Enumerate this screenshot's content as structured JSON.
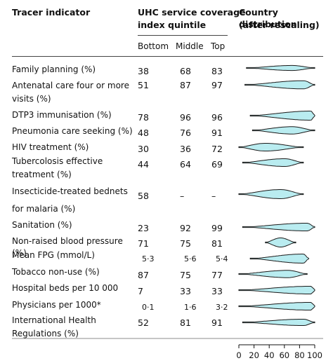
{
  "headers": {
    "indicator": "Tracer indicator",
    "quintile_line1": "UHC service coverage",
    "quintile_line2": "index quintile",
    "distribution_line1": "Country distribution",
    "distribution_line2": "(after rescaling)",
    "bottom": "Bottom",
    "middle": "Middle",
    "top": "Top"
  },
  "colors": {
    "violin_fill": "#b9ecf0",
    "violin_stroke": "#1a1a1a"
  },
  "rows": [
    {
      "line1": "Family planning (%)",
      "line2": "",
      "bottom": "38",
      "middle": "68",
      "top": "83"
    },
    {
      "line1": "Antenatal care four or more",
      "line2": "visits (%)",
      "bottom": "51",
      "middle": "87",
      "top": "97"
    },
    {
      "line1": "DTP3 immunisation (%)",
      "line2": "",
      "bottom": "78",
      "middle": "96",
      "top": "96"
    },
    {
      "line1": "Pneumonia care seeking (%)",
      "line2": "",
      "bottom": "48",
      "middle": "76",
      "top": "91"
    },
    {
      "line1": "HIV treatment (%)",
      "line2": "",
      "bottom": "30",
      "middle": "36",
      "top": "72"
    },
    {
      "line1": "Tubercolosis effective",
      "line2": "treatment (%)",
      "bottom": "44",
      "middle": "64",
      "top": "69"
    },
    {
      "line1": "Insecticide-treated bednets",
      "line2": "for malaria (%)",
      "bottom": "58",
      "middle": "–",
      "top": "–"
    },
    {
      "line1": "Sanitation (%)",
      "line2": "",
      "bottom": "23",
      "middle": "92",
      "top": "99"
    },
    {
      "line1": "Non-raised blood pressure (%)",
      "line2": "",
      "bottom": "71",
      "middle": "75",
      "top": "81"
    },
    {
      "line1": "Mean FPG (mmol/L)",
      "line2": "",
      "bottom": "5·3",
      "middle": "5·6",
      "top": "5·4"
    },
    {
      "line1": "Tobacco non-use (%)",
      "line2": "",
      "bottom": "87",
      "middle": "75",
      "top": "77"
    },
    {
      "line1": "Hospital beds per 10 000",
      "line2": "",
      "bottom": "7",
      "middle": "33",
      "top": "33"
    },
    {
      "line1": "Physicians per 1000*",
      "line2": "",
      "bottom": "0·1",
      "middle": "1·6",
      "top": "3·2"
    },
    {
      "line1": "International Health",
      "line2": "Regulations (%)",
      "bottom": "52",
      "middle": "81",
      "top": "91"
    }
  ],
  "chart_data": {
    "type": "violin",
    "xlim": [
      0,
      100
    ],
    "ticks": [
      "0",
      "20",
      "40",
      "60",
      "80",
      "100"
    ],
    "series": [
      {
        "range": [
          10,
          100
        ],
        "peak": 70,
        "width": 0.55
      },
      {
        "range": [
          8,
          100
        ],
        "peak": 85,
        "width": 0.9
      },
      {
        "range": [
          15,
          100
        ],
        "peak": 95,
        "width": 1.0
      },
      {
        "range": [
          18,
          100
        ],
        "peak": 70,
        "width": 0.8
      },
      {
        "range": [
          0,
          85
        ],
        "peak": 35,
        "width": 0.85
      },
      {
        "range": [
          5,
          85
        ],
        "peak": 60,
        "width": 0.85
      },
      {
        "range": [
          0,
          85
        ],
        "peak": 55,
        "width": 1.0
      },
      {
        "range": [
          5,
          100
        ],
        "peak": 90,
        "width": 0.85
      },
      {
        "range": [
          35,
          75
        ],
        "peak": 55,
        "width": 1.0
      },
      {
        "range": [
          15,
          92
        ],
        "peak": 85,
        "width": 1.0
      },
      {
        "range": [
          0,
          90
        ],
        "peak": 65,
        "width": 0.8
      },
      {
        "range": [
          0,
          100
        ],
        "peak": 95,
        "width": 0.85
      },
      {
        "range": [
          0,
          100
        ],
        "peak": 95,
        "width": 0.85
      },
      {
        "range": [
          5,
          100
        ],
        "peak": 85,
        "width": 0.7
      }
    ]
  }
}
